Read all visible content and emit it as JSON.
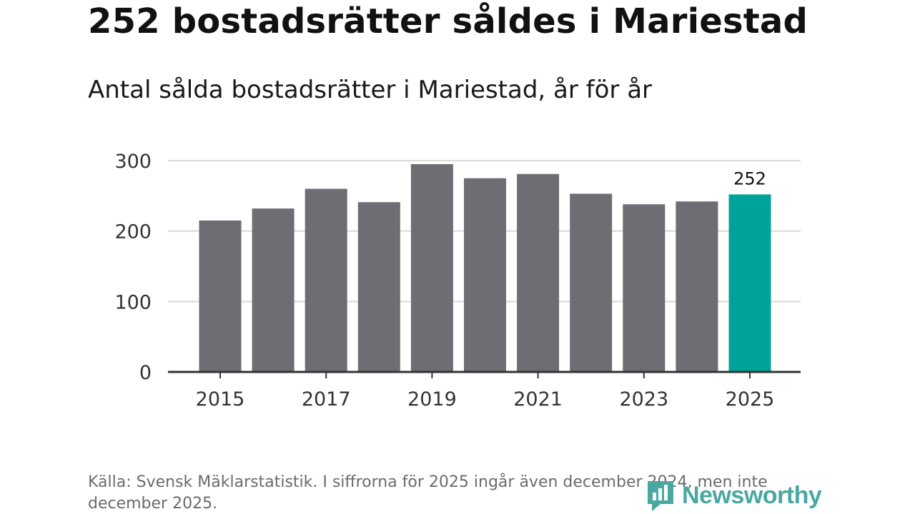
{
  "title": "252 bostadsrätter såldes i Mariestad",
  "subtitle": "Antal sålda bostadsrätter i Mariestad, år för år",
  "source": "Källa: Svensk Mäklarstatistik. I siffrorna för 2025 ingår även december 2024, men inte december 2025.",
  "logo_text": "Newsworthy",
  "colors": {
    "bar": "#6e6d73",
    "highlight": "#00a39a",
    "grid": "#d9d9d9",
    "axis": "#333333"
  },
  "chart_data": {
    "type": "bar",
    "title": "Antal sålda bostadsrätter i Mariestad, år för år",
    "xlabel": "",
    "ylabel": "",
    "categories": [
      "2015",
      "2016",
      "2017",
      "2018",
      "2019",
      "2020",
      "2021",
      "2022",
      "2023",
      "2024",
      "2025"
    ],
    "values": [
      215,
      232,
      260,
      241,
      295,
      275,
      281,
      253,
      238,
      242,
      252
    ],
    "highlight_index": 10,
    "highlight_label": "252",
    "ylim": [
      0,
      300
    ],
    "yticks": [
      0,
      100,
      200,
      300
    ],
    "xtick_labels": [
      "2015",
      "2017",
      "2019",
      "2021",
      "2023",
      "2025"
    ],
    "grid": true
  }
}
